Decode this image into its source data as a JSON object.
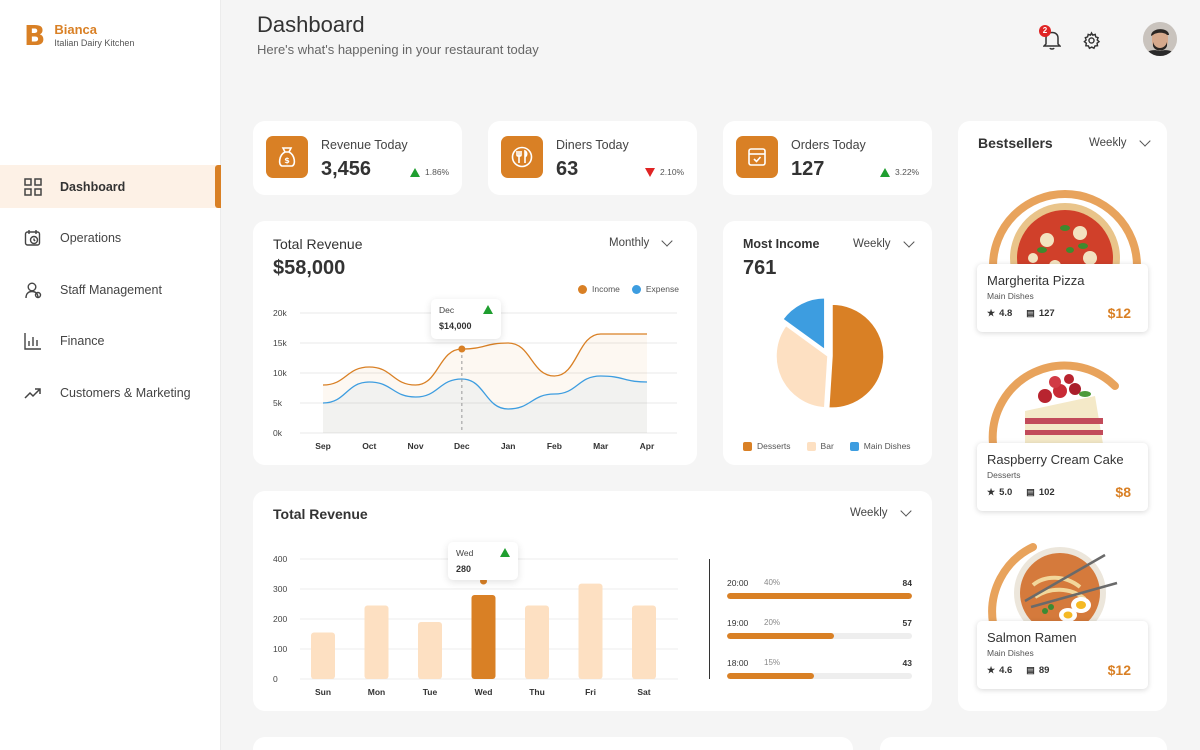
{
  "brand": {
    "mark": "B",
    "name": "Bianca",
    "tagline": "Italian Dairy Kitchen"
  },
  "nav": [
    {
      "label": "Dashboard",
      "icon": "dashboard-icon",
      "active": true
    },
    {
      "label": "Operations",
      "icon": "calendar-clock-icon"
    },
    {
      "label": "Staff Management",
      "icon": "staff-icon"
    },
    {
      "label": "Finance",
      "icon": "bar-chart-icon"
    },
    {
      "label": "Customers & Marketing",
      "icon": "trend-up-icon"
    }
  ],
  "header": {
    "title": "Dashboard",
    "subtitle": "Here's what's happening in your restaurant today",
    "notification_count": "2"
  },
  "stats": [
    {
      "label": "Revenue Today",
      "value": "3,456",
      "change": "1.86%",
      "direction": "up",
      "icon": "money-bag-icon"
    },
    {
      "label": "Diners Today",
      "value": "63",
      "change": "2.10%",
      "direction": "down",
      "icon": "fork-knife-icon"
    },
    {
      "label": "Orders Today",
      "value": "127",
      "change": "3.22%",
      "direction": "up",
      "icon": "order-box-icon"
    }
  ],
  "colors": {
    "accent": "#d98025",
    "expense": "#3d9de0",
    "bar_light": "#fde0c2",
    "up": "#1f9e2f",
    "down": "#e02424"
  },
  "total_revenue": {
    "title": "Total Revenue",
    "amount": "$58,000",
    "period": "Monthly",
    "legend": [
      "Income",
      "Expense"
    ],
    "tooltip": {
      "label": "Dec",
      "value": "$14,000"
    }
  },
  "most_income": {
    "title": "Most Income",
    "value": "761",
    "period": "Weekly",
    "legend": [
      "Desserts",
      "Bar",
      "Main Dishes"
    ]
  },
  "weekly_revenue": {
    "title": "Total Revenue",
    "period": "Weekly",
    "tooltip": {
      "label": "Wed",
      "value": "280"
    },
    "hours": [
      {
        "time": "20:00",
        "pct": "40%",
        "count": "84",
        "fill": 1.0
      },
      {
        "time": "19:00",
        "pct": "20%",
        "count": "57",
        "fill": 0.58
      },
      {
        "time": "18:00",
        "pct": "15%",
        "count": "43",
        "fill": 0.47
      }
    ]
  },
  "bestsellers": {
    "title": "Bestsellers",
    "period": "Weekly",
    "items": [
      {
        "name": "Margherita Pizza",
        "category": "Main Dishes",
        "rating": "4.8",
        "orders": "127",
        "price": "$12",
        "icon": "pizza-icon"
      },
      {
        "name": "Raspberry Cream Cake",
        "category": "Desserts",
        "rating": "5.0",
        "orders": "102",
        "price": "$8",
        "icon": "cake-icon"
      },
      {
        "name": "Salmon Ramen",
        "category": "Main Dishes",
        "rating": "4.6",
        "orders": "89",
        "price": "$12",
        "icon": "ramen-icon"
      }
    ]
  },
  "chart_data": [
    {
      "type": "line",
      "title": "Total Revenue",
      "x": [
        "Sep",
        "Oct",
        "Nov",
        "Dec",
        "Jan",
        "Feb",
        "Mar",
        "Apr"
      ],
      "yticks": [
        "20k",
        "15k",
        "10k",
        "5k",
        "0k"
      ],
      "ylim": [
        0,
        20000
      ],
      "series": [
        {
          "name": "Income",
          "values": [
            8000,
            11000,
            8000,
            14000,
            15000,
            9500,
            16500,
            16500
          ]
        },
        {
          "name": "Expense",
          "values": [
            5000,
            8500,
            6000,
            9000,
            4000,
            6500,
            9500,
            8500
          ]
        }
      ]
    },
    {
      "type": "pie",
      "title": "Most Income",
      "labels": [
        "Desserts",
        "Bar",
        "Main Dishes"
      ],
      "values": [
        51,
        34,
        15
      ]
    },
    {
      "type": "bar",
      "title": "Total Revenue",
      "categories": [
        "Sun",
        "Mon",
        "Tue",
        "Wed",
        "Thu",
        "Fri",
        "Sat"
      ],
      "values": [
        155,
        245,
        190,
        280,
        245,
        318,
        245
      ],
      "yticks": [
        "400",
        "300",
        "200",
        "100",
        "0"
      ],
      "ylim": [
        0,
        400
      ],
      "highlight": "Wed"
    }
  ]
}
